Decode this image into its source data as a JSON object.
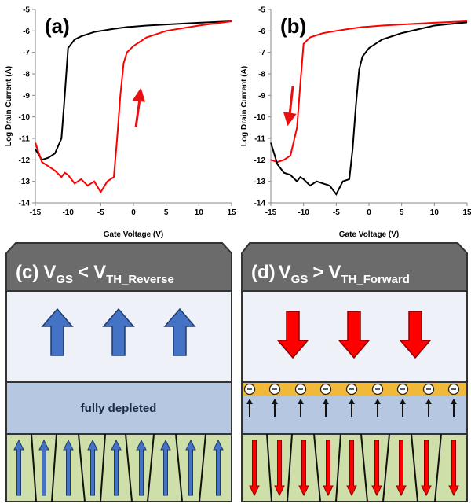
{
  "chart_data": [
    {
      "type": "line",
      "annotation": "(a)",
      "x_label": "Gate Voltage (V)",
      "y_label": "Log Drain Current (A)",
      "x": [
        -15,
        -14,
        -13,
        -12,
        -11,
        -10.5,
        -10,
        -9,
        -8,
        -7,
        -6,
        -5,
        -4,
        -3,
        -2.5,
        -2,
        -1.5,
        -1,
        0,
        2,
        5,
        10,
        15
      ],
      "series": [
        {
          "color": "#000000",
          "values": [
            -11.5,
            -12.0,
            -11.9,
            -11.7,
            -11.0,
            -9.0,
            -6.8,
            -6.4,
            -6.25,
            -6.15,
            -6.05,
            -6.0,
            -5.95,
            -5.9,
            -5.88,
            -5.86,
            -5.84,
            -5.82,
            -5.8,
            -5.75,
            -5.7,
            -5.62,
            -5.55
          ]
        },
        {
          "color": "#ff0000",
          "values": [
            -11.2,
            -12.1,
            -12.3,
            -12.5,
            -12.8,
            -12.6,
            -12.7,
            -13.1,
            -12.9,
            -13.2,
            -13.0,
            -13.5,
            -13.0,
            -12.8,
            -11.0,
            -9.0,
            -7.5,
            -7.0,
            -6.7,
            -6.3,
            -6.0,
            -5.75,
            -5.55
          ]
        }
      ],
      "xlim": [
        -15,
        15
      ],
      "xticks": [
        -15,
        -10,
        -5,
        0,
        5,
        10,
        15
      ],
      "ylim": [
        -14,
        -5
      ],
      "yticks": [
        -14,
        -13,
        -12,
        -11,
        -10,
        -9,
        -8,
        -7,
        -6,
        -5
      ]
    },
    {
      "type": "line",
      "annotation": "(b)",
      "x_label": "Gate Voltage (V)",
      "y_label": "Log Drain Current (A)",
      "x": [
        -15,
        -14,
        -13,
        -12,
        -11,
        -10.5,
        -10,
        -9,
        -8,
        -7,
        -6,
        -5,
        -4,
        -3,
        -2.5,
        -2,
        -1.5,
        -1,
        0,
        2,
        5,
        10,
        15
      ],
      "series": [
        {
          "color": "#ff0000",
          "values": [
            -12.0,
            -12.1,
            -12.0,
            -11.8,
            -10.5,
            -8.5,
            -6.6,
            -6.3,
            -6.2,
            -6.1,
            -6.05,
            -6.0,
            -5.95,
            -5.9,
            -5.88,
            -5.86,
            -5.84,
            -5.82,
            -5.8,
            -5.75,
            -5.7,
            -5.62,
            -5.55
          ]
        },
        {
          "color": "#000000",
          "values": [
            -11.2,
            -12.2,
            -12.6,
            -12.7,
            -13.0,
            -12.8,
            -12.9,
            -13.2,
            -13.0,
            -13.1,
            -13.2,
            -13.6,
            -13.0,
            -12.9,
            -11.5,
            -9.5,
            -7.8,
            -7.2,
            -6.8,
            -6.4,
            -6.1,
            -5.75,
            -5.6
          ]
        }
      ],
      "xlim": [
        -15,
        15
      ],
      "xticks": [
        -15,
        -10,
        -5,
        0,
        5,
        10,
        15
      ],
      "ylim": [
        -14,
        -5
      ],
      "yticks": [
        -14,
        -13,
        -12,
        -11,
        -10,
        -9,
        -8,
        -7,
        -6,
        -5
      ]
    }
  ],
  "diagrams": {
    "c": {
      "tag": "(c)",
      "lhs": "V",
      "lhs_sub": "GS",
      "op": "<",
      "rhs": "V",
      "rhs_sub": "TH_Reverse",
      "layer": "fully depleted"
    },
    "d": {
      "tag": "(d)",
      "lhs": "V",
      "lhs_sub": "GS",
      "op": ">",
      "rhs": "V",
      "rhs_sub": "TH_Forward"
    }
  }
}
